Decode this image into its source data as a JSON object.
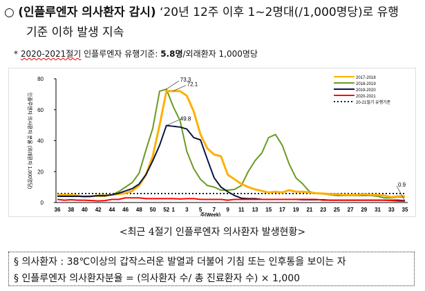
{
  "header": {
    "bullet": "○",
    "bold": "(인플루엔자 의사환자 감시)",
    "rest": " ‘20년 12주 이후 1~2명대(/1,000명당)로 유행",
    "line2": "기준 이하 발생 지속"
  },
  "note": {
    "prefix": "* ",
    "season": "2020-2021절기",
    "mid": " 인플루엔자 유행기준: ",
    "value": "5.8명",
    "suffix": "/외래환자 1,000명당"
  },
  "caption": "<최근 4절기 인플루엔자 의사환자 발생현황>",
  "definitions": [
    "§ 의사환자 : 38℃이상의 갑작스러운 발열과 더불어 기침 또는 인후통을 보이는 자",
    "§ 인플루엔자 의사환자분율 = (의사환자 수/ 총 진료환자 수) × 1,000"
  ],
  "chart_data": {
    "type": "line",
    "xlabel": "주(Week)",
    "ylabel": "인플루엔자 의사환자 분율 (외래환자 1,000명당)",
    "ylim": [
      0,
      80
    ],
    "yticks": [
      0,
      20,
      40,
      60,
      80
    ],
    "x": [
      36,
      37,
      38,
      39,
      40,
      41,
      42,
      43,
      44,
      45,
      46,
      47,
      48,
      49,
      50,
      51,
      52,
      1,
      2,
      3,
      4,
      5,
      6,
      7,
      8,
      9,
      10,
      11,
      12,
      13,
      14,
      15,
      16,
      17,
      18,
      19,
      20,
      21,
      22,
      23,
      24,
      25,
      26,
      27,
      28,
      29,
      30,
      31,
      32,
      33,
      34,
      35
    ],
    "xticks": [
      "36",
      "38",
      "40",
      "42",
      "44",
      "46",
      "48",
      "50",
      "52",
      "1",
      "3",
      "5",
      "7",
      "9",
      "11",
      "13",
      "15",
      "17",
      "19",
      "21",
      "23",
      "25",
      "27",
      "29",
      "31",
      "33",
      "35"
    ],
    "legend_position": "top-right",
    "series": [
      {
        "name": "2017-2018",
        "color": "#ffb000",
        "values": [
          5,
          5,
          5,
          4.5,
          3.5,
          4,
          4.5,
          4.5,
          5,
          5.5,
          6,
          7.5,
          11,
          18,
          30,
          50,
          72,
          72.1,
          72,
          69,
          59,
          44,
          35,
          31,
          30,
          18,
          15,
          12,
          10,
          8.5,
          7.5,
          6.5,
          7,
          6.5,
          8,
          7,
          7,
          6.5,
          6,
          5.8,
          5.5,
          5.5,
          5,
          5,
          5,
          5.5,
          5,
          5,
          4.5,
          3.5,
          4,
          4
        ]
      },
      {
        "name": "2018-2019",
        "color": "#6a9a1f",
        "values": [
          4,
          4,
          4,
          4,
          4,
          4,
          4,
          4,
          5,
          7,
          10,
          13,
          19,
          34,
          48,
          72,
          73.3,
          62,
          53,
          33,
          22,
          15,
          11,
          10,
          8,
          8,
          8.5,
          11,
          20,
          27,
          32,
          42,
          44,
          37,
          25,
          16,
          12,
          7,
          6,
          5.5,
          5,
          4.5,
          4.5,
          4.5,
          4.5,
          4.5,
          4.5,
          4,
          3,
          3,
          3.5,
          3.5
        ]
      },
      {
        "name": "2019-2020",
        "color": "#0a1540",
        "values": [
          4,
          4,
          4,
          4,
          4,
          4,
          4.5,
          4.5,
          5,
          6,
          7.5,
          9,
          12,
          18,
          27,
          37,
          49.8,
          49.3,
          48.8,
          47.5,
          42,
          40.5,
          28,
          16,
          10,
          7,
          4.5,
          2.8,
          2.5,
          2.5,
          2,
          2,
          2,
          2,
          2,
          2,
          1.8,
          1.8,
          1.8,
          1.8,
          1.5,
          1.5,
          1.5,
          1.5,
          1.5,
          1.5,
          1.5,
          1.5,
          1.5,
          1.5,
          1.5,
          1.2
        ]
      },
      {
        "name": "2020-2021",
        "color": "#ff0000",
        "values": [
          2,
          1.5,
          1.8,
          1.5,
          1.5,
          1.3,
          1,
          1.3,
          2,
          2,
          3,
          3,
          3,
          2.5,
          2.5,
          2.5,
          2.5,
          2.5,
          2.3,
          2.5,
          2.5,
          2,
          2,
          2,
          2,
          1.5,
          2,
          2,
          2,
          2,
          2,
          2,
          2,
          2,
          2,
          2,
          2,
          2,
          2,
          1.5,
          1.5,
          1.5,
          1.5,
          1.5,
          1.5,
          1.5,
          1.5,
          1.5,
          1.5,
          1.3,
          1,
          0.9
        ]
      }
    ],
    "threshold": {
      "name": "20-21절기 유행기준",
      "value": 5.8
    },
    "annotations": [
      {
        "text": "73.3",
        "series": "2018-2019",
        "x": 52
      },
      {
        "text": "72.1",
        "series": "2017-2018",
        "x": 1
      },
      {
        "text": "49.8",
        "series": "2019-2020",
        "x": 52
      },
      {
        "text": "0.9",
        "series": "2020-2021",
        "x": 35
      }
    ]
  }
}
